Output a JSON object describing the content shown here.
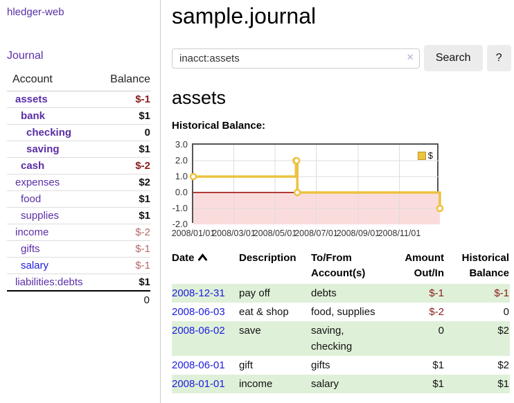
{
  "colors": {
    "accent_purple": "#5a2ea6",
    "link_blue": "#1b1be0",
    "negative_dark": "#8b1c1c",
    "negative_soft": "#b46a6a",
    "row_green": "#dff0d8",
    "chart_line_yellow": "#edc240",
    "chart_negative_fill": "#fbdcdc",
    "chart_zero_line": "#990000"
  },
  "sidebar": {
    "app_title": "hledger-web",
    "journal_label": "Journal",
    "accounts": {
      "headers": {
        "account": "Account",
        "balance": "Balance"
      },
      "rows": [
        {
          "name": "assets",
          "balance": "$-1",
          "indent": 1,
          "in_query": true,
          "balance_tone": "neg"
        },
        {
          "name": "bank",
          "balance": "$1",
          "indent": 2,
          "in_query": true,
          "balance_tone": "pos"
        },
        {
          "name": "checking",
          "balance": "0",
          "indent": 3,
          "in_query": true,
          "balance_tone": "pos"
        },
        {
          "name": "saving",
          "balance": "$1",
          "indent": 3,
          "in_query": true,
          "balance_tone": "pos"
        },
        {
          "name": "cash",
          "balance": "$-2",
          "indent": 2,
          "in_query": true,
          "balance_tone": "neg"
        },
        {
          "name": "expenses",
          "balance": "$2",
          "indent": 1,
          "in_query": false,
          "balance_tone": "pos"
        },
        {
          "name": "food",
          "balance": "$1",
          "indent": 2,
          "in_query": false,
          "balance_tone": "pos"
        },
        {
          "name": "supplies",
          "balance": "$1",
          "indent": 2,
          "in_query": false,
          "balance_tone": "pos"
        },
        {
          "name": "income",
          "balance": "$-2",
          "indent": 1,
          "in_query": false,
          "balance_tone": "soft"
        },
        {
          "name": "gifts",
          "balance": "$-1",
          "indent": 2,
          "in_query": false,
          "balance_tone": "soft"
        },
        {
          "name": "salary",
          "balance": "$-1",
          "indent": 2,
          "in_query": false,
          "balance_tone": "soft",
          "link_tone": "blue"
        },
        {
          "name": "liabilities:debts",
          "balance": "$1",
          "indent": 1,
          "in_query": false,
          "balance_tone": "pos"
        }
      ],
      "total": "0"
    }
  },
  "main": {
    "title": "sample.journal",
    "search": {
      "value": "inacct:assets",
      "clear_icon": "×",
      "button_label": "Search",
      "help_label": "?"
    },
    "account_heading": "assets",
    "chart_title": "Historical Balance:"
  },
  "chart_data": {
    "type": "line",
    "step": true,
    "title": "Historical Balance:",
    "legend": {
      "label": "$",
      "position": "top-right"
    },
    "grid": true,
    "xlim": [
      "2008-01-01",
      "2008-12-31"
    ],
    "ylim": [
      -2.0,
      3.0
    ],
    "yticks": [
      {
        "v": 3,
        "label": "3.0"
      },
      {
        "v": 2,
        "label": "2.0"
      },
      {
        "v": 1,
        "label": "1.0"
      },
      {
        "v": 0,
        "label": "0.0"
      },
      {
        "v": -1,
        "label": "-1.0"
      },
      {
        "v": -2,
        "label": "-2.0"
      }
    ],
    "xticks": [
      {
        "date": "2008-01-01",
        "label": "2008/01/01"
      },
      {
        "date": "2008-03-01",
        "label": "2008/03/01"
      },
      {
        "date": "2008-05-01",
        "label": "2008/05/01"
      },
      {
        "date": "2008-07-01",
        "label": "2008/07/01"
      },
      {
        "date": "2008-09-01",
        "label": "2008/09/01"
      },
      {
        "date": "2008-11-01",
        "label": "2008/11/01"
      }
    ],
    "series": [
      {
        "name": "$",
        "points": [
          {
            "date": "2008-01-01",
            "value": 1
          },
          {
            "date": "2008-06-01",
            "value": 2
          },
          {
            "date": "2008-06-02",
            "value": 2
          },
          {
            "date": "2008-06-03",
            "value": 0
          },
          {
            "date": "2008-12-31",
            "value": -1
          }
        ]
      }
    ],
    "negative_region_shaded": true
  },
  "register": {
    "headers": {
      "date": "Date",
      "description": "Description",
      "accounts": "To/From Account(s)",
      "amount": "Amount Out/In",
      "balance": "Historical Balance"
    },
    "rows": [
      {
        "date": "2008-12-31",
        "description": "pay off",
        "accounts": "debts",
        "amount": "$-1",
        "balance": "$-1"
      },
      {
        "date": "2008-06-03",
        "description": "eat & shop",
        "accounts": "food, supplies",
        "amount": "$-2",
        "balance": "0"
      },
      {
        "date": "2008-06-02",
        "description": "save",
        "accounts": "saving, checking",
        "amount": "0",
        "balance": "$2"
      },
      {
        "date": "2008-06-01",
        "description": "gift",
        "accounts": "gifts",
        "amount": "$1",
        "balance": "$2"
      },
      {
        "date": "2008-01-01",
        "description": "income",
        "accounts": "salary",
        "amount": "$1",
        "balance": "$1"
      }
    ]
  }
}
